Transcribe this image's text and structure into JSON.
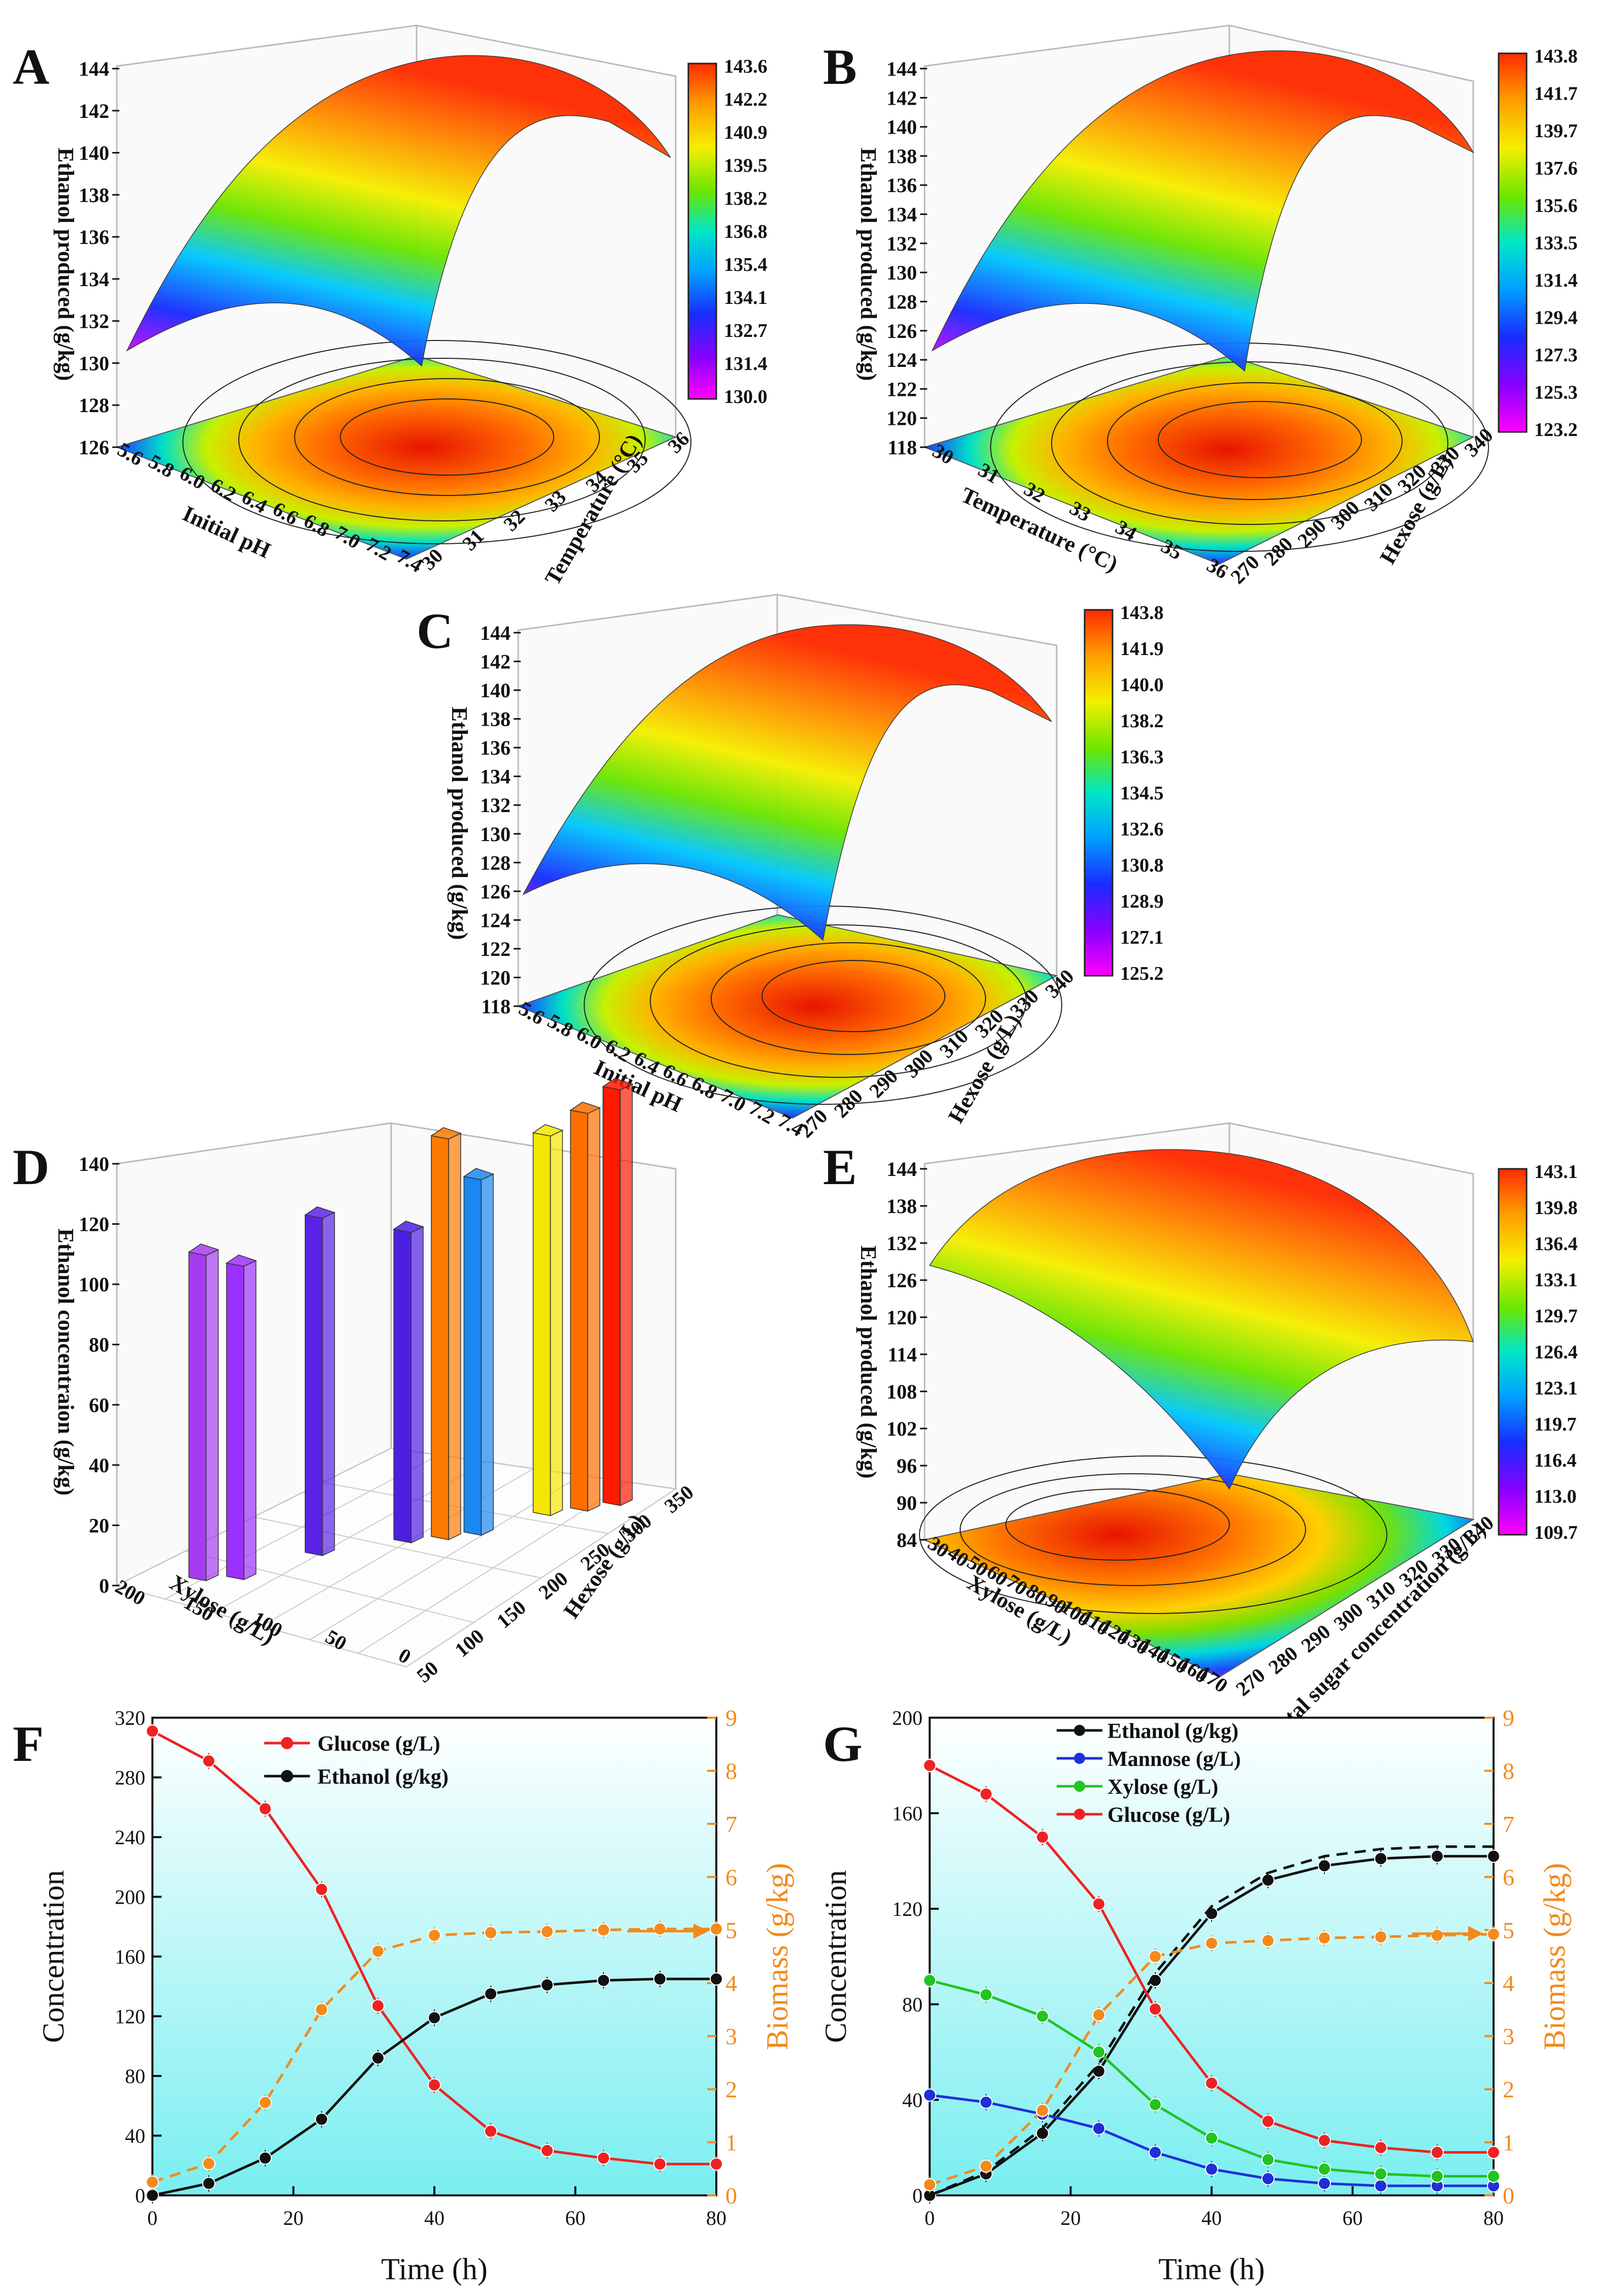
{
  "figure": {
    "panels": [
      "A",
      "B",
      "C",
      "D",
      "E",
      "F",
      "G"
    ]
  },
  "colors": {
    "surface_scale": [
      "#ff00ff",
      "#8a00ff",
      "#1a2bff",
      "#00a2ff",
      "#00e6c8",
      "#6be600",
      "#f5ef00",
      "#ff9a00",
      "#ff2a00"
    ],
    "glucose": "#ee2222",
    "ethanol": "#111111",
    "mannose": "#1f2fd8",
    "xylose": "#22c322",
    "biomass": "#f28a1c",
    "plot_bg_top": "#ffffff",
    "plot_bg_bottom": "#79eef0"
  },
  "chart_data": [
    {
      "panel": "A",
      "type": "surface3d",
      "xlabel": "Initial pH",
      "ylabel": "Temperature (°C)",
      "zlabel": "Ethanol produced (g/kg)",
      "x_ticks": [
        "5.6",
        "5.8",
        "6.0",
        "6.2",
        "6.4",
        "6.6",
        "6.8",
        "7.0",
        "7.2",
        "7.4"
      ],
      "y_ticks": [
        "30",
        "31",
        "32",
        "33",
        "34",
        "35",
        "36"
      ],
      "z_ticks": [
        "126",
        "128",
        "130",
        "132",
        "134",
        "136",
        "138",
        "140",
        "142",
        "144"
      ],
      "zlim": [
        126,
        144
      ],
      "colorbar": [
        "143.6",
        "142.2",
        "140.9",
        "139.5",
        "138.2",
        "136.8",
        "135.4",
        "134.1",
        "132.7",
        "131.4",
        "130.0"
      ]
    },
    {
      "panel": "B",
      "type": "surface3d",
      "xlabel": "Temperature (°C)",
      "ylabel": "Hexose (g/L)",
      "zlabel": "Ethanol produced (g/kg)",
      "x_ticks": [
        "30",
        "31",
        "32",
        "33",
        "34",
        "35",
        "36"
      ],
      "y_ticks": [
        "270",
        "280",
        "290",
        "300",
        "310",
        "320",
        "330",
        "340"
      ],
      "z_ticks": [
        "118",
        "120",
        "122",
        "124",
        "126",
        "128",
        "130",
        "132",
        "134",
        "136",
        "138",
        "140",
        "142",
        "144"
      ],
      "zlim": [
        118,
        144
      ],
      "colorbar": [
        "143.8",
        "141.7",
        "139.7",
        "137.6",
        "135.6",
        "133.5",
        "131.4",
        "129.4",
        "127.3",
        "125.3",
        "123.2"
      ]
    },
    {
      "panel": "C",
      "type": "surface3d",
      "xlabel": "Initial pH",
      "ylabel": "Hexose (g/L)",
      "zlabel": "Ethanol produced (g/kg)",
      "x_ticks": [
        "5.6",
        "5.8",
        "6.0",
        "6.2",
        "6.4",
        "6.6",
        "6.8",
        "7.0",
        "7.2",
        "7.4"
      ],
      "y_ticks": [
        "270",
        "280",
        "290",
        "300",
        "310",
        "320",
        "330",
        "340"
      ],
      "z_ticks": [
        "118",
        "120",
        "122",
        "124",
        "126",
        "128",
        "130",
        "132",
        "134",
        "136",
        "138",
        "140",
        "142",
        "144"
      ],
      "zlim": [
        118,
        144
      ],
      "colorbar": [
        "143.8",
        "141.9",
        "140.0",
        "138.2",
        "136.3",
        "134.5",
        "132.6",
        "130.8",
        "128.9",
        "127.1",
        "125.2"
      ]
    },
    {
      "panel": "D",
      "type": "bar3d",
      "xlabel": "Xylose (g/L)",
      "ylabel": "Hexose (g/L)",
      "zlabel": "Ethanol concentraion (g/kg)",
      "x_ticks": [
        "200",
        "150",
        "100",
        "50",
        "0"
      ],
      "y_ticks": [
        "50",
        "100",
        "150",
        "200",
        "250",
        "300",
        "350"
      ],
      "z_ticks": [
        "0",
        "20",
        "40",
        "60",
        "80",
        "100",
        "120",
        "140"
      ],
      "zlim": [
        0,
        140
      ],
      "bars": [
        {
          "xylose": 170,
          "hexose": 100,
          "value": 108,
          "color": "#a63cf0"
        },
        {
          "xylose": 160,
          "hexose": 125,
          "value": 104,
          "color": "#9b30ff"
        },
        {
          "xylose": 120,
          "hexose": 150,
          "value": 112,
          "color": "#5a22e6"
        },
        {
          "xylose": 90,
          "hexose": 200,
          "value": 103,
          "color": "#4d1fe0"
        },
        {
          "xylose": 80,
          "hexose": 225,
          "value": 133,
          "color": "#ff7a00"
        },
        {
          "xylose": 70,
          "hexose": 245,
          "value": 118,
          "color": "#1a88f0"
        },
        {
          "xylose": 40,
          "hexose": 275,
          "value": 126,
          "color": "#f5e600"
        },
        {
          "xylose": 30,
          "hexose": 300,
          "value": 132,
          "color": "#ff6f00"
        },
        {
          "xylose": 20,
          "hexose": 320,
          "value": 138,
          "color": "#ff1a00"
        }
      ]
    },
    {
      "panel": "E",
      "type": "surface3d",
      "xlabel": "Xylose (g/L)",
      "ylabel": "Total sugar concentration (g/L)",
      "zlabel": "Ethanol produced (g/kg)",
      "x_ticks": [
        "30",
        "40",
        "50",
        "60",
        "70",
        "80",
        "90",
        "100",
        "110",
        "120",
        "130",
        "140",
        "150",
        "160",
        "170"
      ],
      "y_ticks": [
        "270",
        "280",
        "290",
        "300",
        "310",
        "320",
        "330",
        "340"
      ],
      "z_ticks": [
        "84",
        "90",
        "96",
        "102",
        "108",
        "114",
        "120",
        "126",
        "132",
        "138",
        "144"
      ],
      "zlim": [
        84,
        144
      ],
      "colorbar": [
        "143.1",
        "139.8",
        "136.4",
        "133.1",
        "129.7",
        "126.4",
        "123.1",
        "119.7",
        "116.4",
        "113.0",
        "109.7"
      ]
    },
    {
      "panel": "F",
      "type": "line",
      "xlabel": "Time (h)",
      "ylabel": "Concentration",
      "y2label": "Biomass (g/kg)",
      "xlim": [
        0,
        80
      ],
      "ylim": [
        0,
        320
      ],
      "y2lim": [
        0,
        9
      ],
      "x_ticks": [
        "0",
        "20",
        "40",
        "60",
        "80"
      ],
      "y_ticks": [
        "0",
        "40",
        "80",
        "120",
        "160",
        "200",
        "240",
        "280",
        "320"
      ],
      "y2_ticks": [
        "0",
        "1",
        "2",
        "3",
        "4",
        "5",
        "6",
        "7",
        "8",
        "9"
      ],
      "x": [
        0,
        8,
        16,
        24,
        32,
        40,
        48,
        56,
        64,
        72,
        80
      ],
      "series": [
        {
          "name": "Glucose (g/L)",
          "axis": "left",
          "color": "#ee2222",
          "values": [
            311,
            291,
            259,
            205,
            127,
            74,
            43,
            30,
            25,
            21,
            21
          ]
        },
        {
          "name": "Ethanol (g/kg)",
          "axis": "left",
          "color": "#111111",
          "values": [
            0,
            8,
            25,
            51,
            92,
            119,
            135,
            141,
            144,
            145,
            145
          ]
        },
        {
          "axis": "right",
          "color": "#f28a1c",
          "dashed": true,
          "values": [
            0.25,
            0.6,
            1.75,
            3.5,
            4.6,
            4.9,
            4.95,
            4.97,
            5.0,
            5.02,
            5.02
          ]
        }
      ]
    },
    {
      "panel": "G",
      "type": "line",
      "xlabel": "Time (h)",
      "ylabel": "Concentration",
      "y2label": "Biomass (g/kg)",
      "xlim": [
        0,
        80
      ],
      "ylim": [
        0,
        200
      ],
      "y2lim": [
        0,
        9
      ],
      "x_ticks": [
        "0",
        "20",
        "40",
        "60",
        "80"
      ],
      "y_ticks": [
        "0",
        "40",
        "80",
        "120",
        "160",
        "200"
      ],
      "y2_ticks": [
        "0",
        "1",
        "2",
        "3",
        "4",
        "5",
        "6",
        "7",
        "8",
        "9"
      ],
      "x": [
        0,
        8,
        16,
        24,
        32,
        40,
        48,
        56,
        64,
        72,
        80
      ],
      "series": [
        {
          "name": "Ethanol (g/kg)",
          "axis": "left",
          "color": "#111111",
          "values": [
            0,
            9,
            26,
            52,
            90,
            118,
            132,
            138,
            141,
            142,
            142
          ]
        },
        {
          "axis": "left",
          "color": "#111111",
          "dashed": true,
          "values": [
            0,
            10,
            28,
            55,
            93,
            121,
            135,
            142,
            145,
            146,
            146
          ]
        },
        {
          "name": "Mannose (g/L)",
          "axis": "left",
          "color": "#1f2fd8",
          "values": [
            42,
            39,
            34,
            28,
            18,
            11,
            7,
            5,
            4,
            4,
            4
          ]
        },
        {
          "name": "Xylose (g/L)",
          "axis": "left",
          "color": "#22c322",
          "values": [
            90,
            84,
            75,
            60,
            38,
            24,
            15,
            11,
            9,
            8,
            8
          ]
        },
        {
          "name": "Glucose (g/L)",
          "axis": "left",
          "color": "#ee2222",
          "values": [
            180,
            168,
            150,
            122,
            78,
            47,
            31,
            23,
            20,
            18,
            18
          ]
        },
        {
          "axis": "right",
          "color": "#f28a1c",
          "dashed": true,
          "values": [
            0.2,
            0.55,
            1.6,
            3.4,
            4.5,
            4.75,
            4.8,
            4.85,
            4.87,
            4.9,
            4.92
          ]
        }
      ]
    }
  ]
}
